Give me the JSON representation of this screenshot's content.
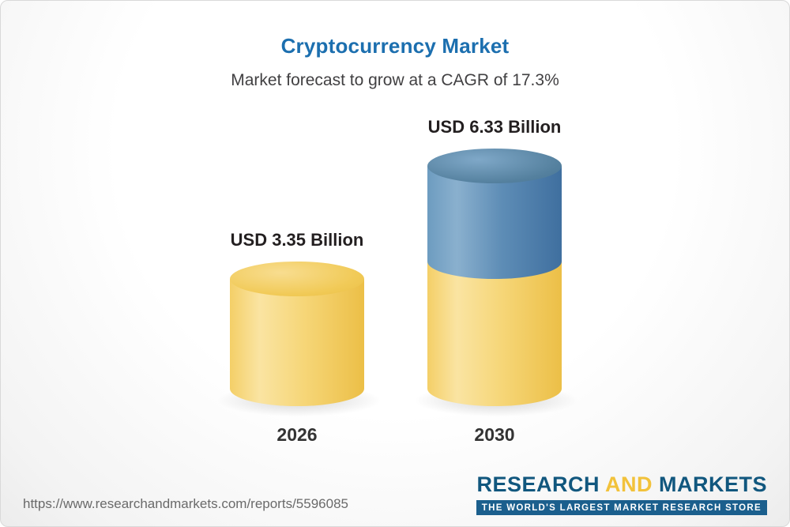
{
  "chart_data": {
    "type": "bar",
    "title": "Cryptocurrency Market",
    "subtitle": "Market forecast to grow at a CAGR of 17.3%",
    "cagr_percent": 17.3,
    "unit": "USD Billion",
    "categories": [
      "2026",
      "2030"
    ],
    "values": [
      3.35,
      6.33
    ],
    "value_labels": [
      "USD 3.35 Billion",
      "USD 6.33 Billion"
    ],
    "ylim": [
      0,
      7
    ],
    "grid": false,
    "legend": "none",
    "colors": {
      "base_segment": "#F2C95C",
      "growth_segment": "#4E80AB",
      "title": "#1C6FAF"
    },
    "bars": [
      {
        "category": "2026",
        "total": 3.35,
        "label": "USD 3.35 Billion",
        "segments": [
          {
            "name": "2026 market size",
            "value": 3.35,
            "color": "#F2C95C"
          }
        ]
      },
      {
        "category": "2030",
        "total": 6.33,
        "label": "USD 6.33 Billion",
        "segments": [
          {
            "name": "2026 market size",
            "value": 3.35,
            "color": "#F2C95C"
          },
          {
            "name": "growth 2026-2030",
            "value": 2.98,
            "color": "#4E80AB"
          }
        ]
      }
    ]
  },
  "footer": {
    "url": "https://www.researchandmarkets.com/reports/5596085",
    "logo": {
      "research": "RESEARCH",
      "and": "AND",
      "markets": "MARKETS",
      "tagline": "THE WORLD'S LARGEST MARKET RESEARCH STORE"
    }
  }
}
